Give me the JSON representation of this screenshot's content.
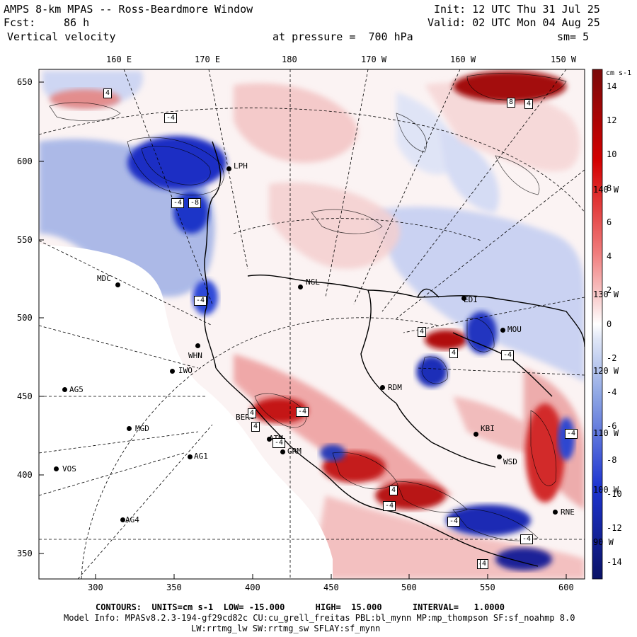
{
  "header": {
    "title": "AMPS 8-km MPAS -- Ross-Beardmore Window",
    "fcst_label": "Fcst:",
    "fcst_value": "86 h",
    "field": "Vertical velocity",
    "pressure": "at pressure =  700 hPa",
    "init": "Init: 12 UTC Thu 31 Jul 25",
    "valid": "Valid: 02 UTC Mon 04 Aug 25",
    "smooth": "sm= 5"
  },
  "axes": {
    "top_lon_labels": [
      "160 E",
      "170 E",
      "180",
      "170 W",
      "160 W",
      "150 W"
    ],
    "y_labels": [
      "650",
      "600",
      "550",
      "500",
      "450",
      "400",
      "350"
    ],
    "x_labels": [
      "300",
      "350",
      "400",
      "450",
      "500",
      "550",
      "600"
    ],
    "right_lon_labels": [
      "140 W",
      "130 W",
      "120 W",
      "110 W",
      "100 W",
      "90 W"
    ]
  },
  "colorbar": {
    "units": "cm s-1",
    "labels": [
      "14",
      "12",
      "10",
      "8",
      "6",
      "4",
      "2",
      "0",
      "-2",
      "-4",
      "-6",
      "-8",
      "-10",
      "-12",
      "-14"
    ],
    "min": -15,
    "max": 15
  },
  "stations": [
    {
      "name": "MDC",
      "icon": "station-dot-icon"
    },
    {
      "name": "NGL",
      "icon": "station-dot-icon"
    },
    {
      "name": "WHN",
      "icon": "station-dot-icon"
    },
    {
      "name": "IWO",
      "icon": "station-dot-icon"
    },
    {
      "name": "AG5",
      "icon": "station-dot-icon"
    },
    {
      "name": "MGD",
      "icon": "station-dot-icon"
    },
    {
      "name": "AG1",
      "icon": "station-dot-icon"
    },
    {
      "name": "VOS",
      "icon": "station-dot-icon"
    },
    {
      "name": "AG4",
      "icon": "station-dot-icon"
    },
    {
      "name": "GRM",
      "icon": "station-dot-icon"
    },
    {
      "name": "ATM",
      "icon": "station-dot-icon"
    },
    {
      "name": "BER",
      "icon": "station-dot-icon"
    },
    {
      "name": "RDM",
      "icon": "station-dot-icon"
    },
    {
      "name": "MOU",
      "icon": "station-dot-icon"
    },
    {
      "name": "WSD",
      "icon": "station-dot-icon"
    },
    {
      "name": "RNE",
      "icon": "station-dot-icon"
    },
    {
      "name": "KBI",
      "icon": "station-dot-icon"
    },
    {
      "name": "LPH",
      "icon": "station-dot-icon"
    },
    {
      "name": "EDI",
      "icon": "station-dot-icon"
    }
  ],
  "contour_labels": [
    "4",
    "-4",
    "-4",
    "4",
    "-4",
    "4",
    "-4",
    "4",
    "4",
    "-4",
    "-4",
    "-4",
    "4",
    "-4",
    "4",
    "4",
    "-4",
    "8",
    "-8",
    "4",
    "-4",
    "4"
  ],
  "footer": {
    "contours": "CONTOURS:  UNITS=cm s-1  LOW= -15.000      HIGH=  15.000      INTERVAL=   1.0000",
    "model_info": "Model Info: MPASv8.2.3-194-gf29cd82c CU:cu_grell_freitas PBL:bl_mynn MP:mp_thompson SF:sf_noahmp 8.0",
    "model_info2": "LW:rrtmg_lw SW:rrtmg_sw SFLAY:sf_mynn"
  },
  "colors": {
    "neg_max": "#0a1e96",
    "neg_mid": "#4a6fd0",
    "neg_low": "#c8d4f2",
    "zero": "#ffffff",
    "pos_low": "#f6d0d0",
    "pos_mid": "#e06a6a",
    "pos_max": "#8b0a0a",
    "coast": "#000000"
  }
}
